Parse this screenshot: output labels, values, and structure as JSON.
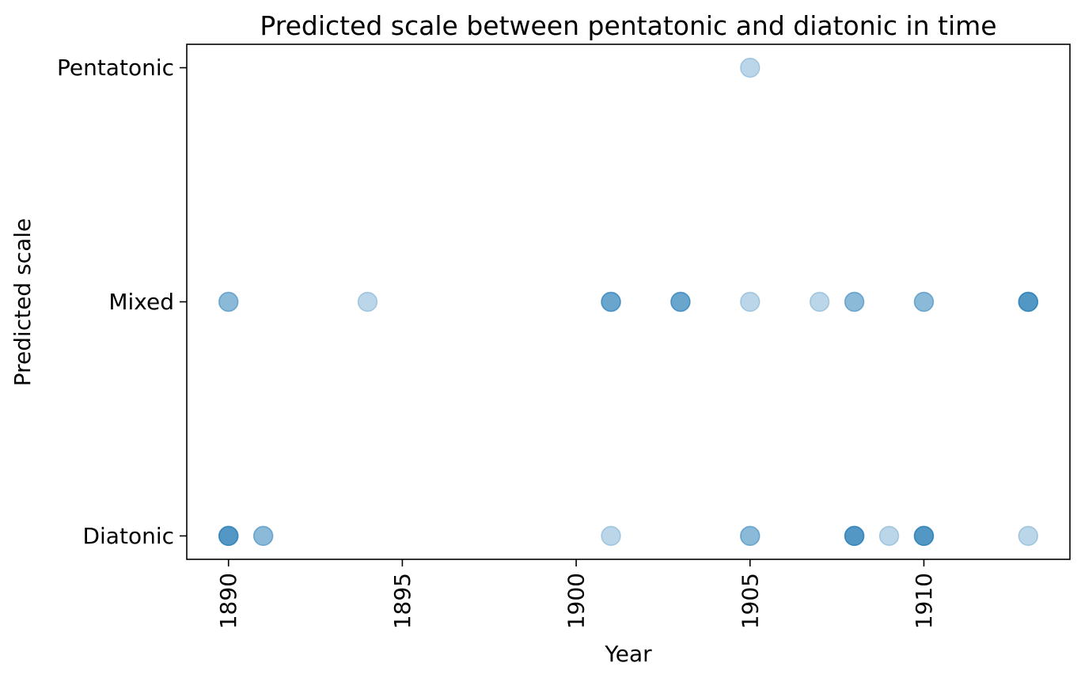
{
  "chart_data": {
    "type": "scatter",
    "title": "Predicted scale between pentatonic and diatonic in time",
    "xlabel": "Year",
    "ylabel": "Predicted scale",
    "xlim": [
      1888.8,
      1914.2
    ],
    "ylim": [
      -0.1,
      2.1
    ],
    "x_ticks": [
      1890,
      1895,
      1900,
      1905,
      1910
    ],
    "x_tick_labels": [
      "1890",
      "1895",
      "1900",
      "1905",
      "1910"
    ],
    "x_tick_rotation": "vertical",
    "y_ticks": [
      0,
      1,
      2
    ],
    "y_tick_labels": [
      "Diatonic",
      "Mixed",
      "Pentatonic"
    ],
    "grid": false,
    "marker_color": "#1f77b4",
    "point_alpha": 0.3,
    "points": [
      {
        "x": 1905,
        "y": 2,
        "count": 1
      },
      {
        "x": 1890,
        "y": 1,
        "count": 2
      },
      {
        "x": 1894,
        "y": 1,
        "count": 1
      },
      {
        "x": 1901,
        "y": 1,
        "count": 3
      },
      {
        "x": 1903,
        "y": 1,
        "count": 3
      },
      {
        "x": 1905,
        "y": 1,
        "count": 1
      },
      {
        "x": 1907,
        "y": 1,
        "count": 1
      },
      {
        "x": 1908,
        "y": 1,
        "count": 2
      },
      {
        "x": 1910,
        "y": 1,
        "count": 2
      },
      {
        "x": 1913,
        "y": 1,
        "count": 4
      },
      {
        "x": 1890,
        "y": 0,
        "count": 4
      },
      {
        "x": 1891,
        "y": 0,
        "count": 2
      },
      {
        "x": 1901,
        "y": 0,
        "count": 1
      },
      {
        "x": 1905,
        "y": 0,
        "count": 2
      },
      {
        "x": 1908,
        "y": 0,
        "count": 4
      },
      {
        "x": 1909,
        "y": 0,
        "count": 1
      },
      {
        "x": 1910,
        "y": 0,
        "count": 4
      },
      {
        "x": 1913,
        "y": 0,
        "count": 1
      }
    ]
  }
}
